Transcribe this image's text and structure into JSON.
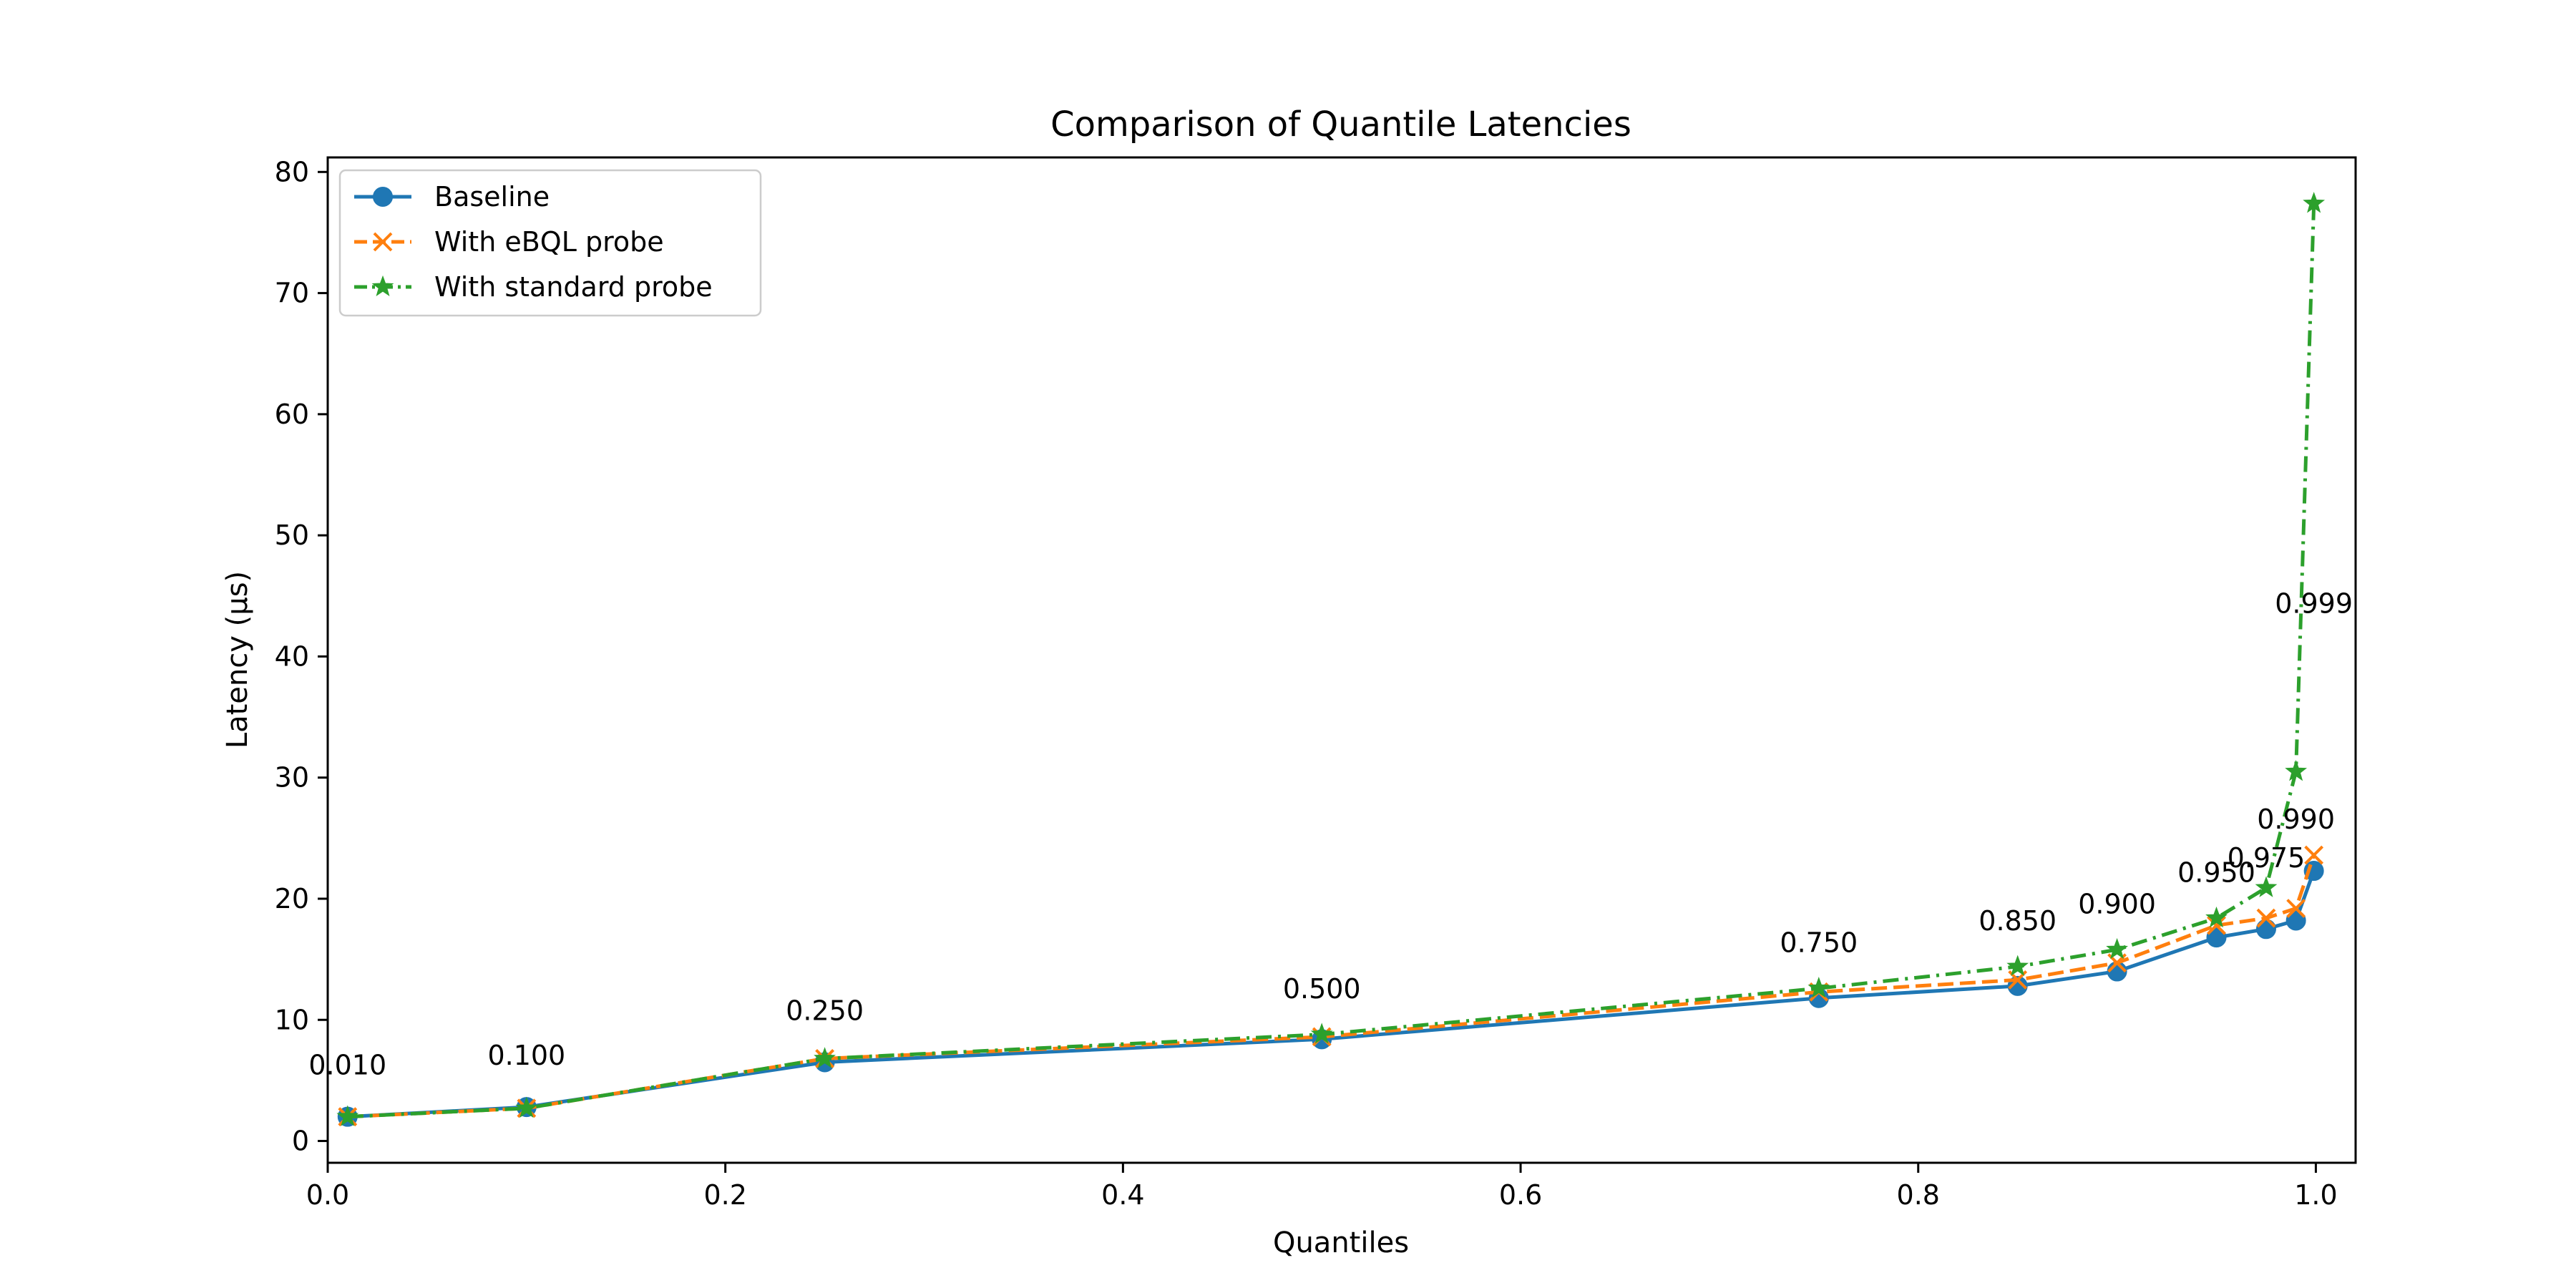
{
  "chart_data": {
    "type": "line",
    "title": "Comparison of Quantile Latencies",
    "xlabel": "Quantiles",
    "ylabel": "Latency (µs)",
    "xlim": [
      0.0,
      1.02
    ],
    "ylim": [
      -1.8,
      81.2
    ],
    "xticks": [
      "0.0",
      "0.2",
      "0.4",
      "0.6",
      "0.8",
      "1.0"
    ],
    "xtick_values": [
      0.0,
      0.2,
      0.4,
      0.6,
      0.8,
      1.0
    ],
    "yticks": [
      "0",
      "10",
      "20",
      "30",
      "40",
      "50",
      "60",
      "70",
      "80"
    ],
    "ytick_values": [
      0,
      10,
      20,
      30,
      40,
      50,
      60,
      70,
      80
    ],
    "grid": false,
    "legend_position": "upper-left",
    "x": [
      0.01,
      0.1,
      0.25,
      0.5,
      0.75,
      0.85,
      0.9,
      0.95,
      0.975,
      0.99,
      0.999
    ],
    "series": [
      {
        "name": "Baseline",
        "color": "#1f77b4",
        "line_style": "solid",
        "marker": "circle",
        "values": [
          2.0,
          2.8,
          6.5,
          8.4,
          11.8,
          12.8,
          14.0,
          16.8,
          17.5,
          18.2,
          22.3
        ]
      },
      {
        "name": "With eBQL probe",
        "color": "#ff7f0e",
        "line_style": "dashed",
        "marker": "x",
        "values": [
          2.0,
          2.7,
          6.8,
          8.6,
          12.3,
          13.3,
          14.7,
          17.8,
          18.4,
          19.2,
          23.6
        ]
      },
      {
        "name": "With standard probe",
        "color": "#2ca02c",
        "line_style": "dashdot",
        "marker": "star",
        "values": [
          2.0,
          2.7,
          6.8,
          8.8,
          12.6,
          14.4,
          15.8,
          18.4,
          20.9,
          30.5,
          77.4
        ]
      }
    ],
    "annotations": [
      {
        "text": "0.010",
        "x": 0.01,
        "y": 5.5
      },
      {
        "text": "0.100",
        "x": 0.1,
        "y": 6.3
      },
      {
        "text": "0.250",
        "x": 0.25,
        "y": 10.0
      },
      {
        "text": "0.500",
        "x": 0.5,
        "y": 11.8
      },
      {
        "text": "0.750",
        "x": 0.75,
        "y": 15.6
      },
      {
        "text": "0.850",
        "x": 0.85,
        "y": 17.4
      },
      {
        "text": "0.900",
        "x": 0.9,
        "y": 18.8
      },
      {
        "text": "0.950",
        "x": 0.95,
        "y": 21.4
      },
      {
        "text": "0.975",
        "x": 0.975,
        "y": 22.6
      },
      {
        "text": "0.990",
        "x": 0.99,
        "y": 25.8
      },
      {
        "text": "0.999",
        "x": 0.999,
        "y": 43.6
      }
    ]
  }
}
